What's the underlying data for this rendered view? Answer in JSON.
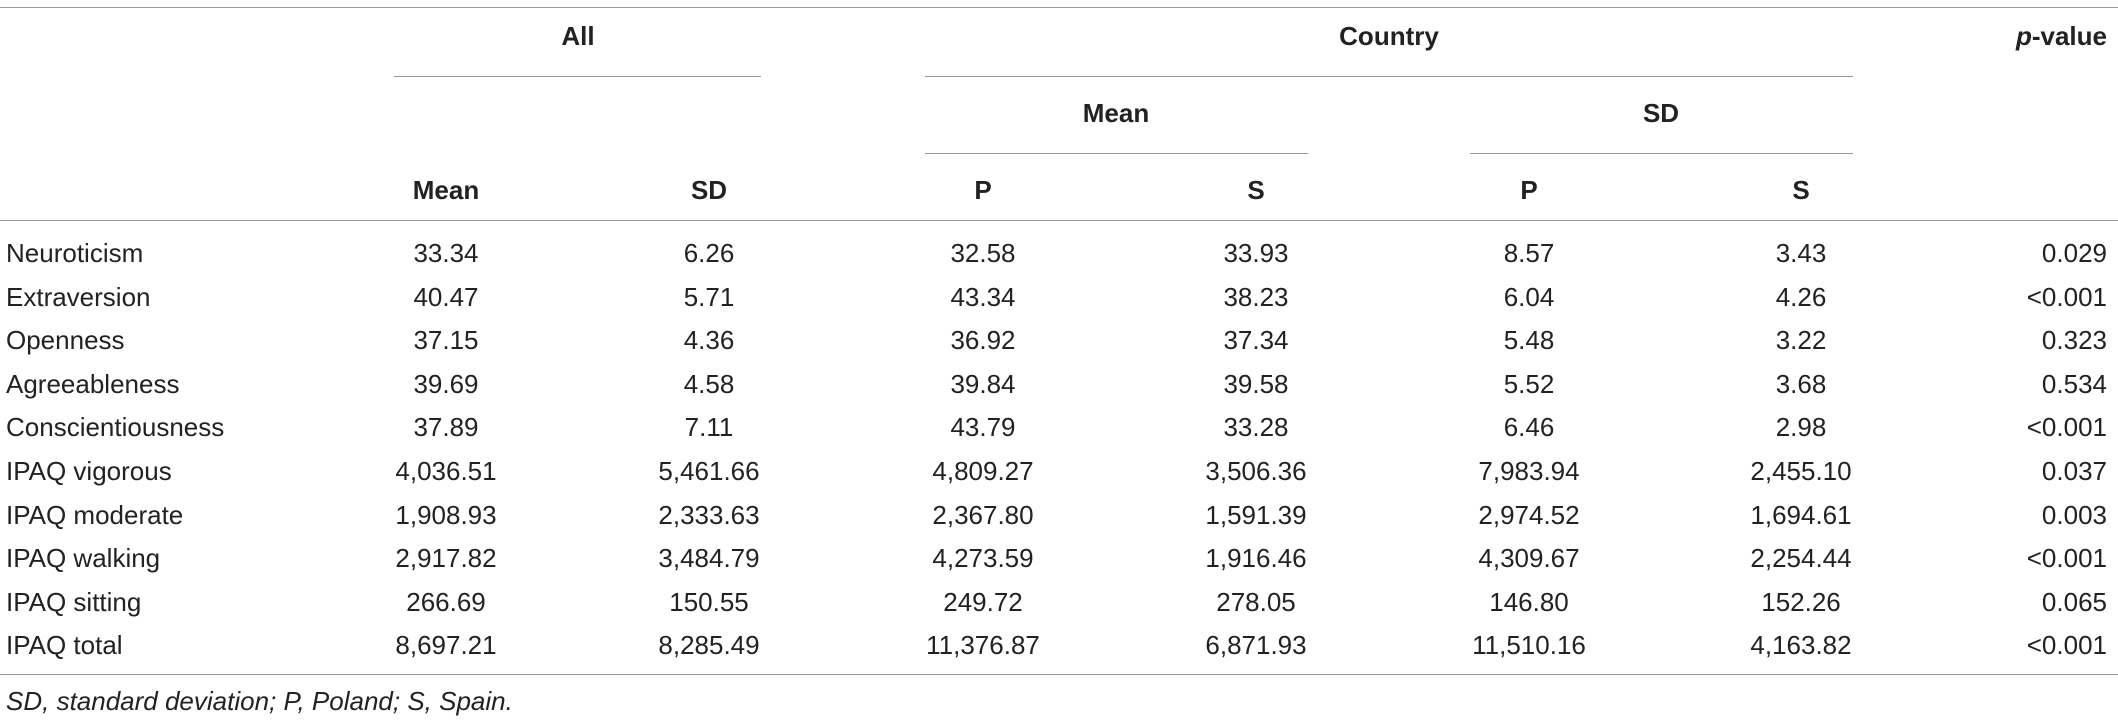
{
  "table": {
    "header": {
      "all": "All",
      "country": "Country",
      "pvalue_italic": "p",
      "pvalue_rest": "-value",
      "country_mean": "Mean",
      "country_sd": "SD",
      "columns": [
        "Mean",
        "SD",
        "P",
        "S",
        "P",
        "S"
      ]
    },
    "rows": [
      [
        "Neuroticism",
        "33.34",
        "6.26",
        "32.58",
        "33.93",
        "8.57",
        "3.43",
        "0.029"
      ],
      [
        "Extraversion",
        "40.47",
        "5.71",
        "43.34",
        "38.23",
        "6.04",
        "4.26",
        "<0.001"
      ],
      [
        "Openness",
        "37.15",
        "4.36",
        "36.92",
        "37.34",
        "5.48",
        "3.22",
        "0.323"
      ],
      [
        "Agreeableness",
        "39.69",
        "4.58",
        "39.84",
        "39.58",
        "5.52",
        "3.68",
        "0.534"
      ],
      [
        "Conscientiousness",
        "37.89",
        "7.11",
        "43.79",
        "33.28",
        "6.46",
        "2.98",
        "<0.001"
      ],
      [
        "IPAQ vigorous",
        "4,036.51",
        "5,461.66",
        "4,809.27",
        "3,506.36",
        "7,983.94",
        "2,455.10",
        "0.037"
      ],
      [
        "IPAQ moderate",
        "1,908.93",
        "2,333.63",
        "2,367.80",
        "1,591.39",
        "2,974.52",
        "1,694.61",
        "0.003"
      ],
      [
        "IPAQ walking",
        "2,917.82",
        "3,484.79",
        "4,273.59",
        "1,916.46",
        "4,309.67",
        "2,254.44",
        "<0.001"
      ],
      [
        "IPAQ sitting",
        "266.69",
        "150.55",
        "249.72",
        "278.05",
        "146.80",
        "152.26",
        "0.065"
      ],
      [
        "IPAQ total",
        "8,697.21",
        "8,285.49",
        "11,376.87",
        "6,871.93",
        "11,510.16",
        "4,163.82",
        "<0.001"
      ]
    ],
    "footnote": "SD, standard deviation; P, Poland; S, Spain."
  }
}
